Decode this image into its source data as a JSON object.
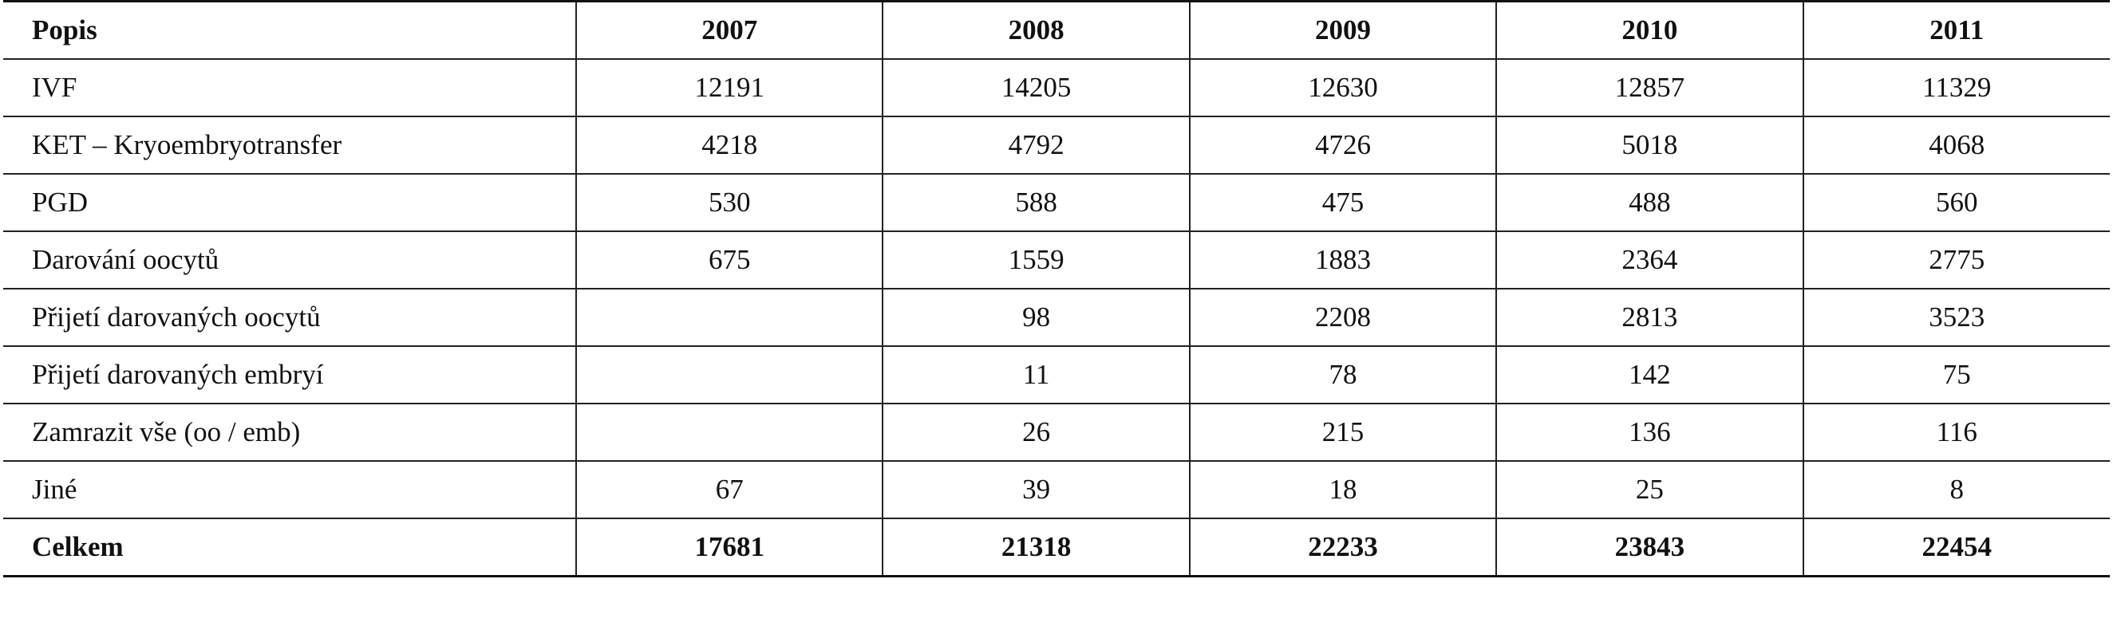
{
  "table": {
    "header": [
      "Popis",
      "2007",
      "2008",
      "2009",
      "2010",
      "2011"
    ],
    "rows": [
      [
        "IVF",
        12191,
        14205,
        12630,
        12857,
        11329
      ],
      [
        "KET – Kryoembryotransfer",
        4218,
        4792,
        4726,
        5018,
        4068
      ],
      [
        "PGD",
        530,
        588,
        475,
        488,
        560
      ],
      [
        "Darování oocytů",
        675,
        1559,
        1883,
        2364,
        2775
      ],
      [
        "Přijetí darovaných oocytů",
        null,
        98,
        2208,
        2813,
        3523
      ],
      [
        "Přijetí darovaných embryí",
        null,
        11,
        78,
        142,
        75
      ],
      [
        "Zamrazit vše (oo / emb)",
        null,
        26,
        215,
        136,
        116
      ],
      [
        "Jiné",
        67,
        39,
        18,
        25,
        8
      ]
    ],
    "total": [
      "Celkem",
      17681,
      21318,
      22233,
      23843,
      22454
    ]
  }
}
